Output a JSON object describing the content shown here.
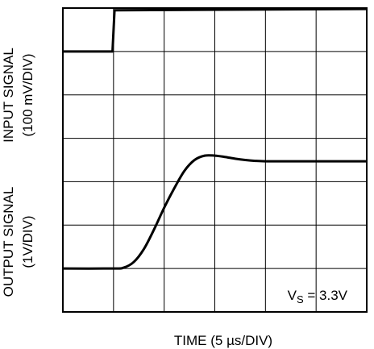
{
  "chart_data": {
    "type": "line",
    "xlabel": "TIME (5 µs/DIV)",
    "ylabels": {
      "input": {
        "line1": "INPUT SIGNAL",
        "line2": "(100 mV/DIV)"
      },
      "output": {
        "line1": "OUTPUT SIGNAL",
        "line2": "(1V/DIV)"
      }
    },
    "annotation": {
      "prefix": "V",
      "subscript": "S",
      "suffix": " = 3.3V",
      "position": "bottom-right"
    },
    "grid": true,
    "x_unit": "µs",
    "x_per_div": 5,
    "x_divisions": 6,
    "y_divisions": 7,
    "xlim": [
      0,
      30
    ],
    "series": [
      {
        "name": "",
        "role": "input",
        "y_unit": "div",
        "x": [
          0,
          4.9,
          5.1,
          30
        ],
        "y": [
          6.0,
          6.0,
          6.95,
          6.98
        ]
      },
      {
        "name": "",
        "role": "output",
        "y_unit": "div",
        "x": [
          0,
          5,
          6,
          7,
          8,
          9,
          10,
          11,
          12,
          13,
          14,
          15,
          16,
          17,
          18,
          19,
          20,
          22,
          24,
          26,
          28,
          30
        ],
        "y": [
          1.0,
          1.0,
          1.02,
          1.15,
          1.45,
          1.9,
          2.4,
          2.85,
          3.25,
          3.5,
          3.6,
          3.6,
          3.57,
          3.53,
          3.5,
          3.48,
          3.47,
          3.47,
          3.47,
          3.47,
          3.47,
          3.47
        ]
      }
    ]
  }
}
